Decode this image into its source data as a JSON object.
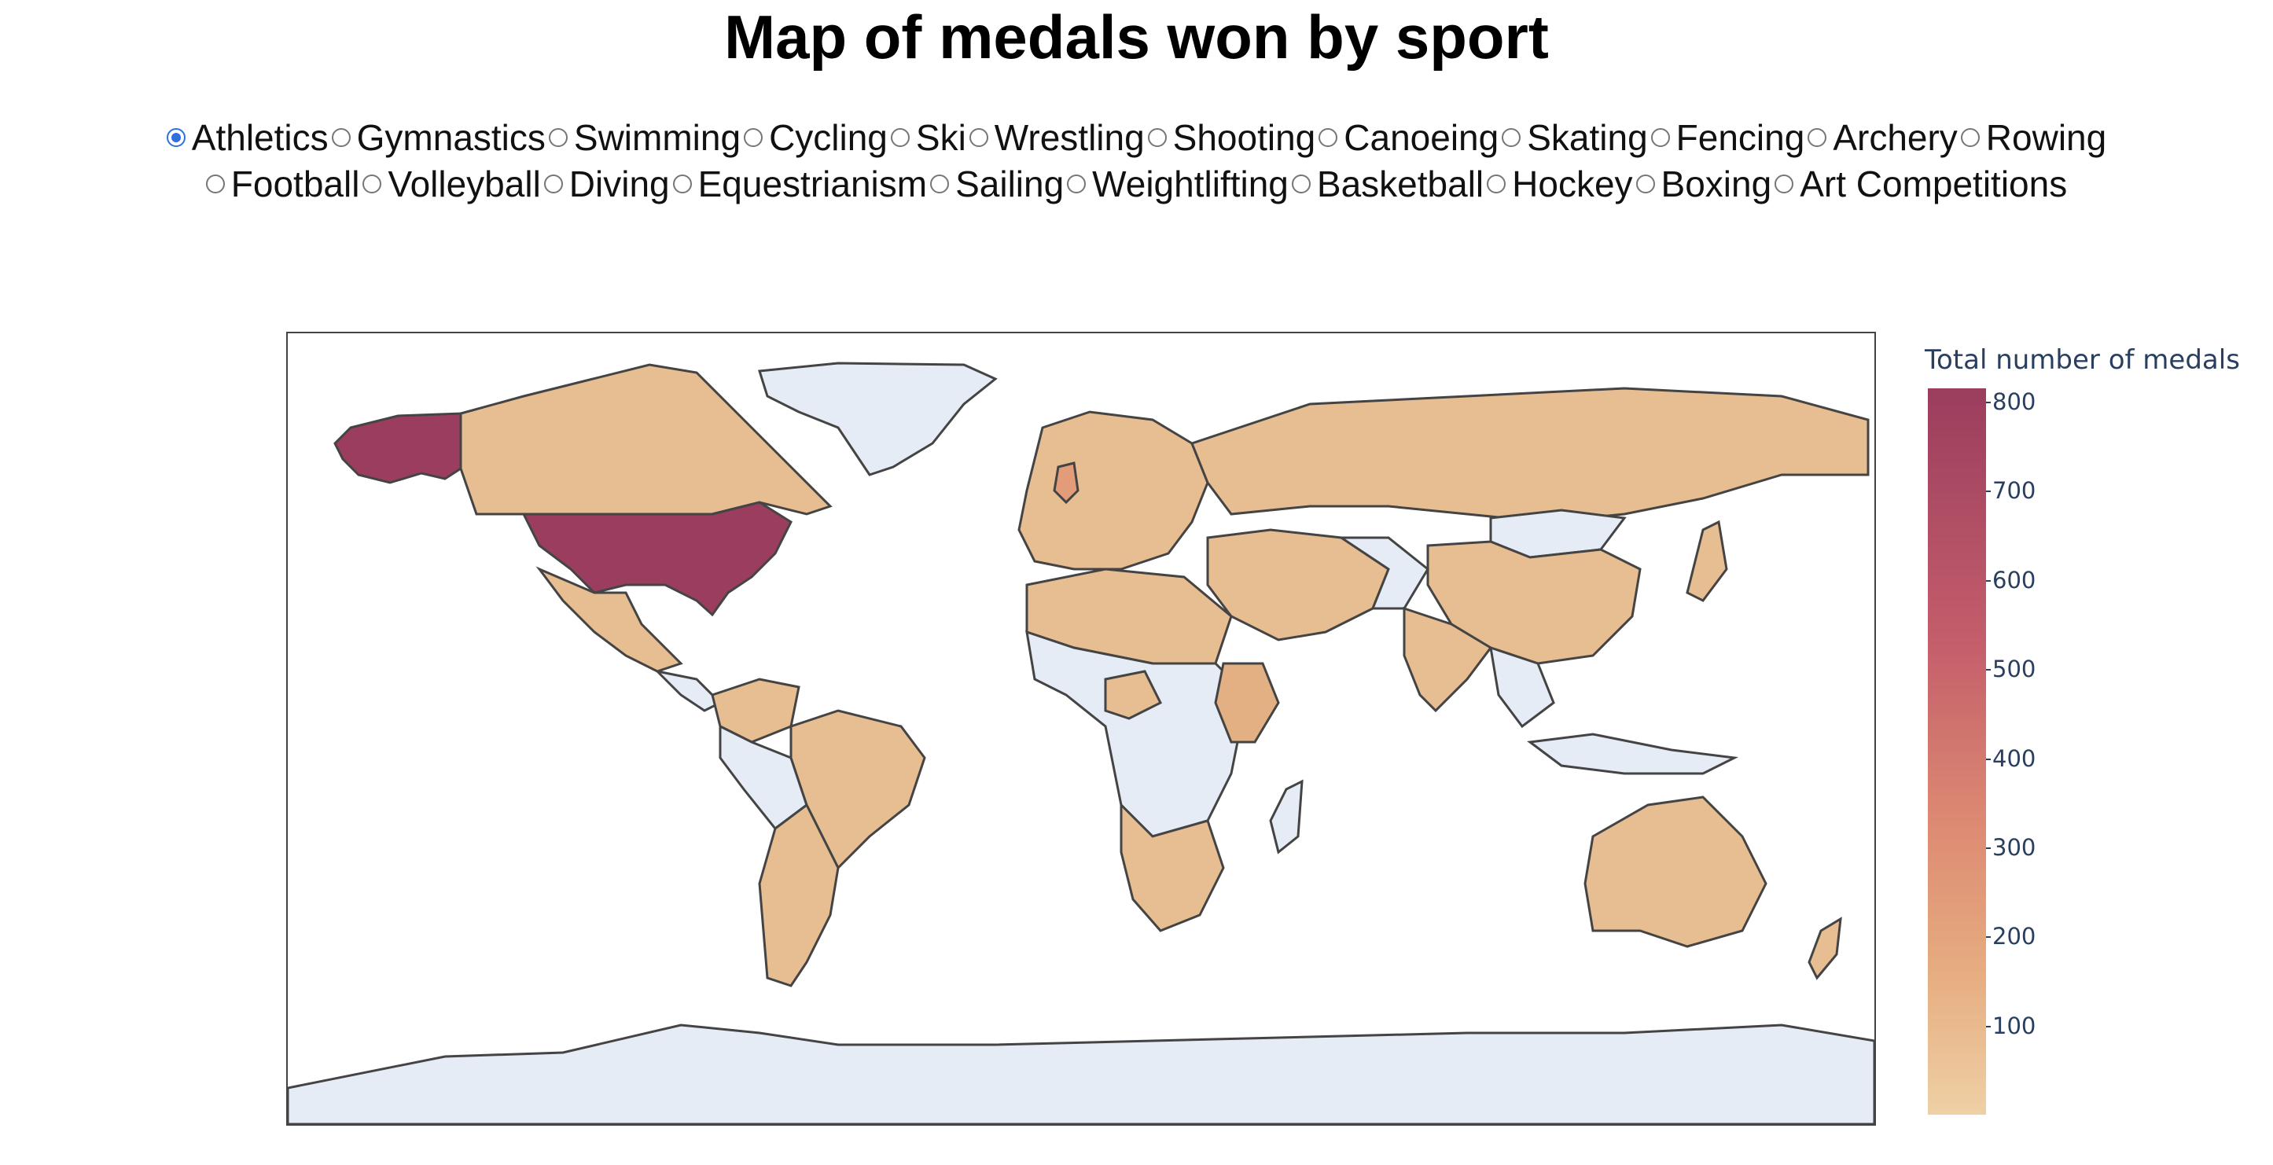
{
  "title": "Map of medals won by sport",
  "sports_row1": [
    {
      "label": "Athletics",
      "selected": true
    },
    {
      "label": "Gymnastics",
      "selected": false
    },
    {
      "label": "Swimming",
      "selected": false
    },
    {
      "label": "Cycling",
      "selected": false
    },
    {
      "label": "Ski",
      "selected": false
    },
    {
      "label": "Wrestling",
      "selected": false
    },
    {
      "label": "Shooting",
      "selected": false
    },
    {
      "label": "Canoeing",
      "selected": false
    },
    {
      "label": "Skating",
      "selected": false
    },
    {
      "label": "Fencing",
      "selected": false
    },
    {
      "label": "Archery",
      "selected": false
    },
    {
      "label": "Rowing",
      "selected": false
    }
  ],
  "sports_row2": [
    {
      "label": "Football",
      "selected": false
    },
    {
      "label": "Volleyball",
      "selected": false
    },
    {
      "label": "Diving",
      "selected": false
    },
    {
      "label": "Equestrianism",
      "selected": false
    },
    {
      "label": "Sailing",
      "selected": false
    },
    {
      "label": "Weightlifting",
      "selected": false
    },
    {
      "label": "Basketball",
      "selected": false
    },
    {
      "label": "Hockey",
      "selected": false
    },
    {
      "label": "Boxing",
      "selected": false
    },
    {
      "label": "Art Competitions",
      "selected": false
    }
  ],
  "colorbar": {
    "title": "Total number of medals",
    "ticks": [
      "800",
      "700",
      "600",
      "500",
      "400",
      "300",
      "200",
      "100"
    ],
    "tick_values": [
      800,
      700,
      600,
      500,
      400,
      300,
      200,
      100
    ],
    "min": 0,
    "max": 815
  },
  "colors": {
    "ocean": "#ffffff",
    "no_data": "#e6ecf5",
    "low": "#efd0a5",
    "mid": "#e7bd92",
    "high": "#9b3d5e",
    "border": "#444444"
  }
}
